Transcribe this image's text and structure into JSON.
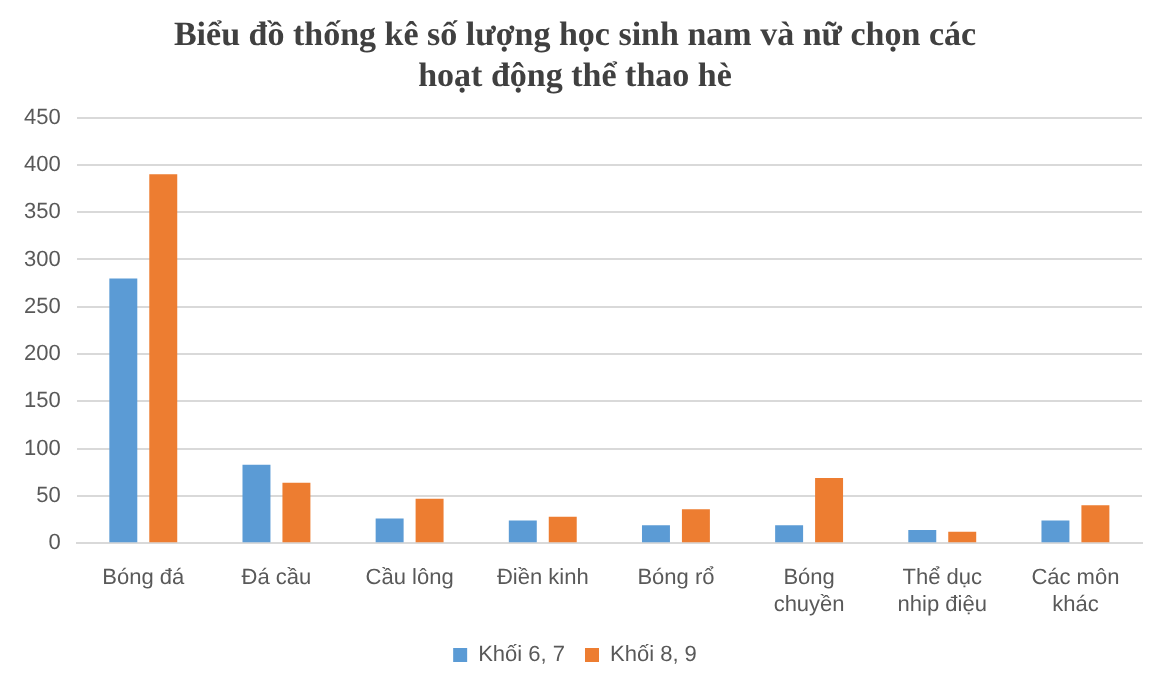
{
  "chart_data": {
    "type": "bar",
    "title": "Biểu đồ thống kê số lượng học sinh nam và nữ chọn các hoạt động thể thao hè",
    "categories": [
      "Bóng đá",
      "Đá cầu",
      "Cầu lông",
      "Điền kinh",
      "Bóng rổ",
      "Bóng chuyền",
      "Thể dục nhip điệu",
      "Các môn khác"
    ],
    "series": [
      {
        "name": "Khối 6, 7",
        "color": "#5b9bd5",
        "values": [
          280,
          83,
          26,
          24,
          19,
          19,
          14,
          24
        ]
      },
      {
        "name": "Khối 8, 9",
        "color": "#ed7d31",
        "values": [
          390,
          64,
          47,
          28,
          36,
          69,
          12,
          40
        ]
      }
    ],
    "ylim": [
      0,
      450
    ],
    "yticks": [
      0,
      50,
      100,
      150,
      200,
      250,
      300,
      350,
      400,
      450
    ],
    "grid": "y",
    "legend": "bottom"
  }
}
